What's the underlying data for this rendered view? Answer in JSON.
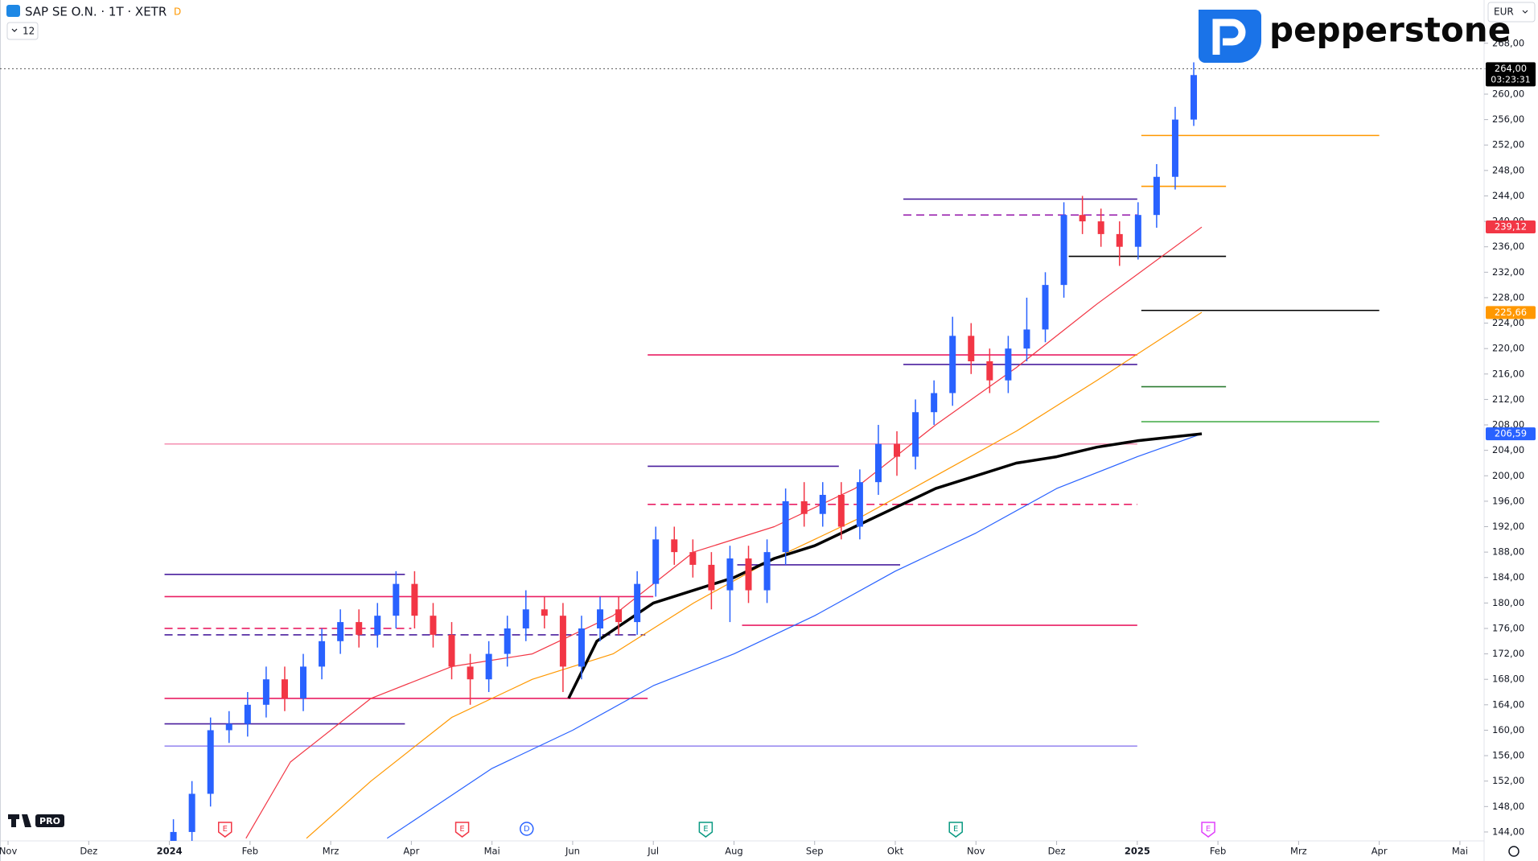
{
  "chart_data": {
    "type": "candlestick",
    "title": "SAP SE O.N. · 1T · XETR",
    "badge": "D",
    "interval_badge": "12",
    "currency": "EUR",
    "brand": "pepperstone",
    "watermark": "PRO",
    "xlim": [
      -0.1,
      18.3
    ],
    "ylim": [
      142.6,
      274.8
    ],
    "xticks": [
      {
        "value": 0,
        "label": "Nov"
      },
      {
        "value": 1,
        "label": "Dez"
      },
      {
        "value": 2,
        "label": "2024"
      },
      {
        "value": 3,
        "label": "Feb"
      },
      {
        "value": 4,
        "label": "Mrz"
      },
      {
        "value": 5,
        "label": "Apr"
      },
      {
        "value": 6,
        "label": "Mai"
      },
      {
        "value": 7,
        "label": "Jun"
      },
      {
        "value": 8,
        "label": "Jul"
      },
      {
        "value": 9,
        "label": "Aug"
      },
      {
        "value": 10,
        "label": "Sep"
      },
      {
        "value": 11,
        "label": "Okt"
      },
      {
        "value": 12,
        "label": "Nov"
      },
      {
        "value": 13,
        "label": "Dez"
      },
      {
        "value": 14,
        "label": "2025"
      },
      {
        "value": 15,
        "label": "Feb"
      },
      {
        "value": 16,
        "label": "Mrz"
      },
      {
        "value": 17,
        "label": "Apr"
      },
      {
        "value": 18,
        "label": "Mai"
      }
    ],
    "yticks": [
      {
        "value": 144,
        "label": "144,00"
      },
      {
        "value": 148,
        "label": "148,00"
      },
      {
        "value": 152,
        "label": "152,00"
      },
      {
        "value": 156,
        "label": "156,00"
      },
      {
        "value": 160,
        "label": "160,00"
      },
      {
        "value": 164,
        "label": "164,00"
      },
      {
        "value": 168,
        "label": "168,00"
      },
      {
        "value": 172,
        "label": "172,00"
      },
      {
        "value": 176,
        "label": "176,00"
      },
      {
        "value": 180,
        "label": "180,00"
      },
      {
        "value": 184,
        "label": "184,00"
      },
      {
        "value": 188,
        "label": "188,00"
      },
      {
        "value": 192,
        "label": "192,00"
      },
      {
        "value": 196,
        "label": "196,00"
      },
      {
        "value": 200,
        "label": "200,00"
      },
      {
        "value": 204,
        "label": "204,00"
      },
      {
        "value": 208,
        "label": "208,00"
      },
      {
        "value": 212,
        "label": "212,00"
      },
      {
        "value": 216,
        "label": "216,00"
      },
      {
        "value": 220,
        "label": "220,00"
      },
      {
        "value": 224,
        "label": "224,00"
      },
      {
        "value": 228,
        "label": "228,00"
      },
      {
        "value": 232,
        "label": "232,00"
      },
      {
        "value": 236,
        "label": "236,00"
      },
      {
        "value": 240,
        "label": "240,00"
      },
      {
        "value": 244,
        "label": "244,00"
      },
      {
        "value": 248,
        "label": "248,00"
      },
      {
        "value": 252,
        "label": "252,00"
      },
      {
        "value": 256,
        "label": "256,00"
      },
      {
        "value": 260,
        "label": "260,00"
      },
      {
        "value": 264,
        "label": "264,00"
      },
      {
        "value": 268,
        "label": "268,00"
      }
    ],
    "up_color": "#2962ff",
    "down_color": "#f23645",
    "x": [
      2.05,
      2.28,
      2.51,
      2.74,
      2.97,
      3.2,
      3.43,
      3.66,
      3.89,
      4.12,
      4.35,
      4.58,
      4.81,
      5.04,
      5.27,
      5.5,
      5.73,
      5.96,
      6.19,
      6.42,
      6.65,
      6.88,
      7.11,
      7.34,
      7.57,
      7.8,
      8.03,
      8.26,
      8.49,
      8.72,
      8.95,
      9.18,
      9.41,
      9.64,
      9.87,
      10.1,
      10.33,
      10.56,
      10.79,
      11.02,
      11.25,
      11.48,
      11.71,
      11.94,
      12.17,
      12.4,
      12.63,
      12.86,
      13.09,
      13.32,
      13.55,
      13.78,
      14.01,
      14.24,
      14.47,
      14.7
    ],
    "open": [
      141,
      144,
      150,
      160,
      161,
      164,
      168,
      165,
      170,
      174,
      177,
      175,
      178,
      183,
      178,
      175,
      170,
      168,
      172,
      176,
      179,
      178,
      170,
      176,
      179,
      177,
      183,
      190,
      188,
      186,
      182,
      187,
      182,
      188,
      196,
      194,
      197,
      192,
      199,
      205,
      203,
      210,
      213,
      222,
      218,
      215,
      220,
      223,
      230,
      241,
      240,
      238,
      236,
      241,
      247,
      256
    ],
    "high": [
      146,
      152,
      162,
      163,
      166,
      170,
      170,
      172,
      176,
      179,
      179,
      180,
      185,
      185,
      180,
      177,
      172,
      174,
      178,
      182,
      181,
      180,
      178,
      181,
      181,
      185,
      192,
      192,
      190,
      188,
      189,
      189,
      190,
      198,
      199,
      199,
      199,
      201,
      208,
      207,
      212,
      215,
      225,
      224,
      220,
      222,
      228,
      232,
      243,
      244,
      242,
      240,
      243,
      249,
      258,
      265
    ],
    "low": [
      140,
      142,
      148,
      158,
      159,
      162,
      163,
      163,
      168,
      172,
      173,
      173,
      176,
      176,
      173,
      168,
      164,
      166,
      170,
      174,
      176,
      166,
      168,
      174,
      175,
      175,
      181,
      186,
      184,
      179,
      177,
      180,
      180,
      186,
      192,
      192,
      190,
      190,
      197,
      200,
      201,
      208,
      211,
      216,
      213,
      213,
      218,
      221,
      228,
      238,
      236,
      233,
      234,
      239,
      245,
      255
    ],
    "close": [
      144,
      150,
      160,
      161,
      164,
      168,
      165,
      170,
      174,
      177,
      175,
      178,
      183,
      178,
      175,
      170,
      168,
      172,
      176,
      179,
      178,
      170,
      176,
      179,
      177,
      183,
      190,
      188,
      186,
      182,
      187,
      182,
      188,
      196,
      194,
      197,
      192,
      199,
      205,
      203,
      210,
      213,
      222,
      218,
      215,
      220,
      223,
      230,
      241,
      240,
      238,
      236,
      241,
      247,
      256,
      263
    ],
    "lines": [
      {
        "color": "#2962ff",
        "width": 1.2,
        "x": [
          4.7,
          6,
          7,
          8,
          9,
          10,
          11,
          12,
          13,
          14,
          14.8
        ],
        "values": [
          143,
          154,
          160,
          167,
          172,
          178,
          185,
          191,
          198,
          203,
          206.6
        ]
      },
      {
        "color": "#ff9800",
        "width": 1.2,
        "x": [
          3.7,
          4.5,
          5.5,
          6.5,
          7.5,
          8.5,
          9.5,
          10.5,
          11.5,
          12.5,
          13.5,
          14.8
        ],
        "values": [
          143,
          152,
          162,
          168,
          172,
          180,
          187,
          193,
          200,
          207,
          215,
          225.7
        ]
      },
      {
        "color": "#f23645",
        "width": 1.2,
        "x": [
          2.95,
          3.5,
          4.5,
          5.5,
          6.5,
          7.5,
          8.5,
          9.5,
          10.5,
          11.5,
          12.5,
          13.5,
          14.8
        ],
        "values": [
          143,
          155,
          165,
          170,
          172,
          178,
          188,
          192,
          198,
          208,
          217,
          227,
          239.1
        ]
      },
      {
        "color": "#000000",
        "width": 3.5,
        "x": [
          6.95,
          7.3,
          8,
          8.5,
          9,
          9.5,
          10,
          10.5,
          11,
          11.5,
          12,
          12.5,
          13,
          13.5,
          14,
          14.8
        ],
        "values": [
          165,
          174,
          180,
          182,
          184,
          187,
          189,
          192,
          195,
          198,
          200,
          202,
          203,
          204.5,
          205.5,
          206.6
        ]
      }
    ],
    "levels": [
      {
        "value": 264,
        "from": -0.1,
        "to": 18.3,
        "color": "#555555",
        "style": "dotted"
      },
      {
        "value": 184.5,
        "from": 1.94,
        "to": 4.92,
        "color": "#4a1f9e",
        "style": "solid"
      },
      {
        "value": 181,
        "from": 1.94,
        "to": 8.0,
        "color": "#e91e63",
        "style": "solid"
      },
      {
        "value": 176,
        "from": 1.94,
        "to": 5.0,
        "color": "#e91e63",
        "style": "dashed"
      },
      {
        "value": 175,
        "from": 1.94,
        "to": 7.9,
        "color": "#4a1f9e",
        "style": "dashed"
      },
      {
        "value": 161,
        "from": 1.94,
        "to": 4.92,
        "color": "#4a1f9e",
        "style": "solid"
      },
      {
        "value": 165,
        "from": 1.94,
        "to": 7.93,
        "color": "#e91e63",
        "style": "solid"
      },
      {
        "value": 157.5,
        "from": 1.94,
        "to": 14.0,
        "color": "#9c8ef0",
        "style": "solid"
      },
      {
        "value": 205,
        "from": 1.94,
        "to": 14.0,
        "color": "#f48fb1",
        "style": "solid"
      },
      {
        "value": 176.5,
        "from": 9.1,
        "to": 14.0,
        "color": "#e91e63",
        "style": "solid"
      },
      {
        "value": 201.5,
        "from": 7.93,
        "to": 10.3,
        "color": "#4a1f9e",
        "style": "solid"
      },
      {
        "value": 195.5,
        "from": 7.93,
        "to": 14.0,
        "color": "#e91e63",
        "style": "dashed"
      },
      {
        "value": 219,
        "from": 7.93,
        "to": 14.0,
        "color": "#e91e63",
        "style": "solid"
      },
      {
        "value": 217.5,
        "from": 11.1,
        "to": 14.0,
        "color": "#4a1f9e",
        "style": "solid"
      },
      {
        "value": 243.5,
        "from": 11.1,
        "to": 14.0,
        "color": "#4a1f9e",
        "style": "solid"
      },
      {
        "value": 241,
        "from": 11.1,
        "to": 14.0,
        "color": "#9c27b0",
        "style": "dashed"
      },
      {
        "value": 186,
        "from": 9.04,
        "to": 11.06,
        "color": "#4a1f9e",
        "style": "solid"
      },
      {
        "value": 234.5,
        "from": 13.15,
        "to": 15.1,
        "color": "#000000",
        "style": "solid"
      },
      {
        "value": 226,
        "from": 14.05,
        "to": 17.0,
        "color": "#000000",
        "style": "solid"
      },
      {
        "value": 253.5,
        "from": 14.05,
        "to": 17.0,
        "color": "#ff9800",
        "style": "solid"
      },
      {
        "value": 208.5,
        "from": 14.05,
        "to": 17.0,
        "color": "#4caf50",
        "style": "solid"
      },
      {
        "value": 214,
        "from": 14.05,
        "to": 15.1,
        "color": "#2e7d32",
        "style": "solid"
      },
      {
        "value": 245.5,
        "from": 14.05,
        "to": 15.1,
        "color": "#ff9800",
        "style": "solid"
      }
    ],
    "events": [
      {
        "x": 2.69,
        "label": "E",
        "color": "#f23645"
      },
      {
        "x": 5.63,
        "label": "E",
        "color": "#f23645"
      },
      {
        "x": 6.43,
        "label": "D",
        "color": "#2962ff"
      },
      {
        "x": 8.65,
        "label": "E",
        "color": "#089981"
      },
      {
        "x": 11.75,
        "label": "E",
        "color": "#089981"
      },
      {
        "x": 14.88,
        "label": "E",
        "color": "#e040fb"
      }
    ],
    "price_tags": [
      {
        "value": 264,
        "label": "264,00",
        "time": "03:23:31",
        "color": "#000000"
      },
      {
        "value": 239.12,
        "label": "239,12",
        "color": "#f23645"
      },
      {
        "value": 225.66,
        "label": "225,66",
        "color": "#ff9800"
      },
      {
        "value": 206.59,
        "label": "206,59",
        "color": "#2962ff"
      }
    ]
  }
}
